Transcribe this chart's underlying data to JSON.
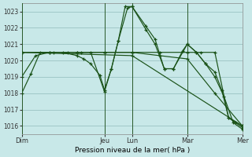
{
  "xlabel": "Pression niveau de la mer( hPa )",
  "background_color": "#c8e8e8",
  "grid_color": "#a0c8c8",
  "line_color": "#1a5218",
  "ylim": [
    1015.5,
    1023.5
  ],
  "yticks": [
    1016,
    1017,
    1018,
    1019,
    1020,
    1021,
    1022,
    1023
  ],
  "day_labels": [
    "Dim",
    "Jeu",
    "Lun",
    "Mar",
    "Mer"
  ],
  "day_positions": [
    0,
    36,
    48,
    72,
    96
  ],
  "lines": [
    {
      "x": [
        0,
        4,
        8,
        14,
        20,
        26,
        30,
        36,
        39,
        42,
        45,
        48,
        54,
        58,
        62,
        66,
        70,
        72,
        76,
        80,
        84,
        88,
        92,
        96
      ],
      "y": [
        1018.0,
        1019.2,
        1020.5,
        1020.5,
        1020.5,
        1020.5,
        1020.5,
        1018.1,
        1019.5,
        1021.2,
        1023.3,
        1023.3,
        1022.1,
        1021.3,
        1019.5,
        1019.5,
        1020.6,
        1021.0,
        1020.5,
        1019.8,
        1019.0,
        1017.8,
        1016.2,
        1015.8
      ]
    },
    {
      "x": [
        0,
        24,
        36,
        48,
        60,
        72,
        84,
        96
      ],
      "y": [
        1020.5,
        1020.5,
        1020.5,
        1020.5,
        1020.3,
        1020.1,
        1018.0,
        1016.0
      ]
    },
    {
      "x": [
        0,
        12,
        24,
        36,
        48,
        60,
        72,
        78,
        84,
        90,
        96
      ],
      "y": [
        1020.5,
        1020.5,
        1020.5,
        1020.5,
        1020.5,
        1020.5,
        1020.5,
        1020.5,
        1020.5,
        1016.5,
        1016.0
      ]
    },
    {
      "x": [
        0,
        6,
        12,
        18,
        24,
        27,
        30,
        34,
        36,
        39,
        42,
        46,
        48,
        54,
        58,
        62,
        66,
        72,
        76,
        80,
        84,
        87,
        90,
        93,
        96
      ],
      "y": [
        1019.0,
        1020.3,
        1020.5,
        1020.5,
        1020.3,
        1020.1,
        1019.8,
        1019.1,
        1018.2,
        1019.5,
        1021.2,
        1023.2,
        1023.3,
        1021.9,
        1021.0,
        1019.5,
        1019.5,
        1021.0,
        1020.5,
        1019.8,
        1019.3,
        1018.2,
        1016.5,
        1016.2,
        1015.9
      ]
    },
    {
      "x": [
        0,
        48,
        96
      ],
      "y": [
        1020.5,
        1020.3,
        1016.0
      ]
    }
  ]
}
